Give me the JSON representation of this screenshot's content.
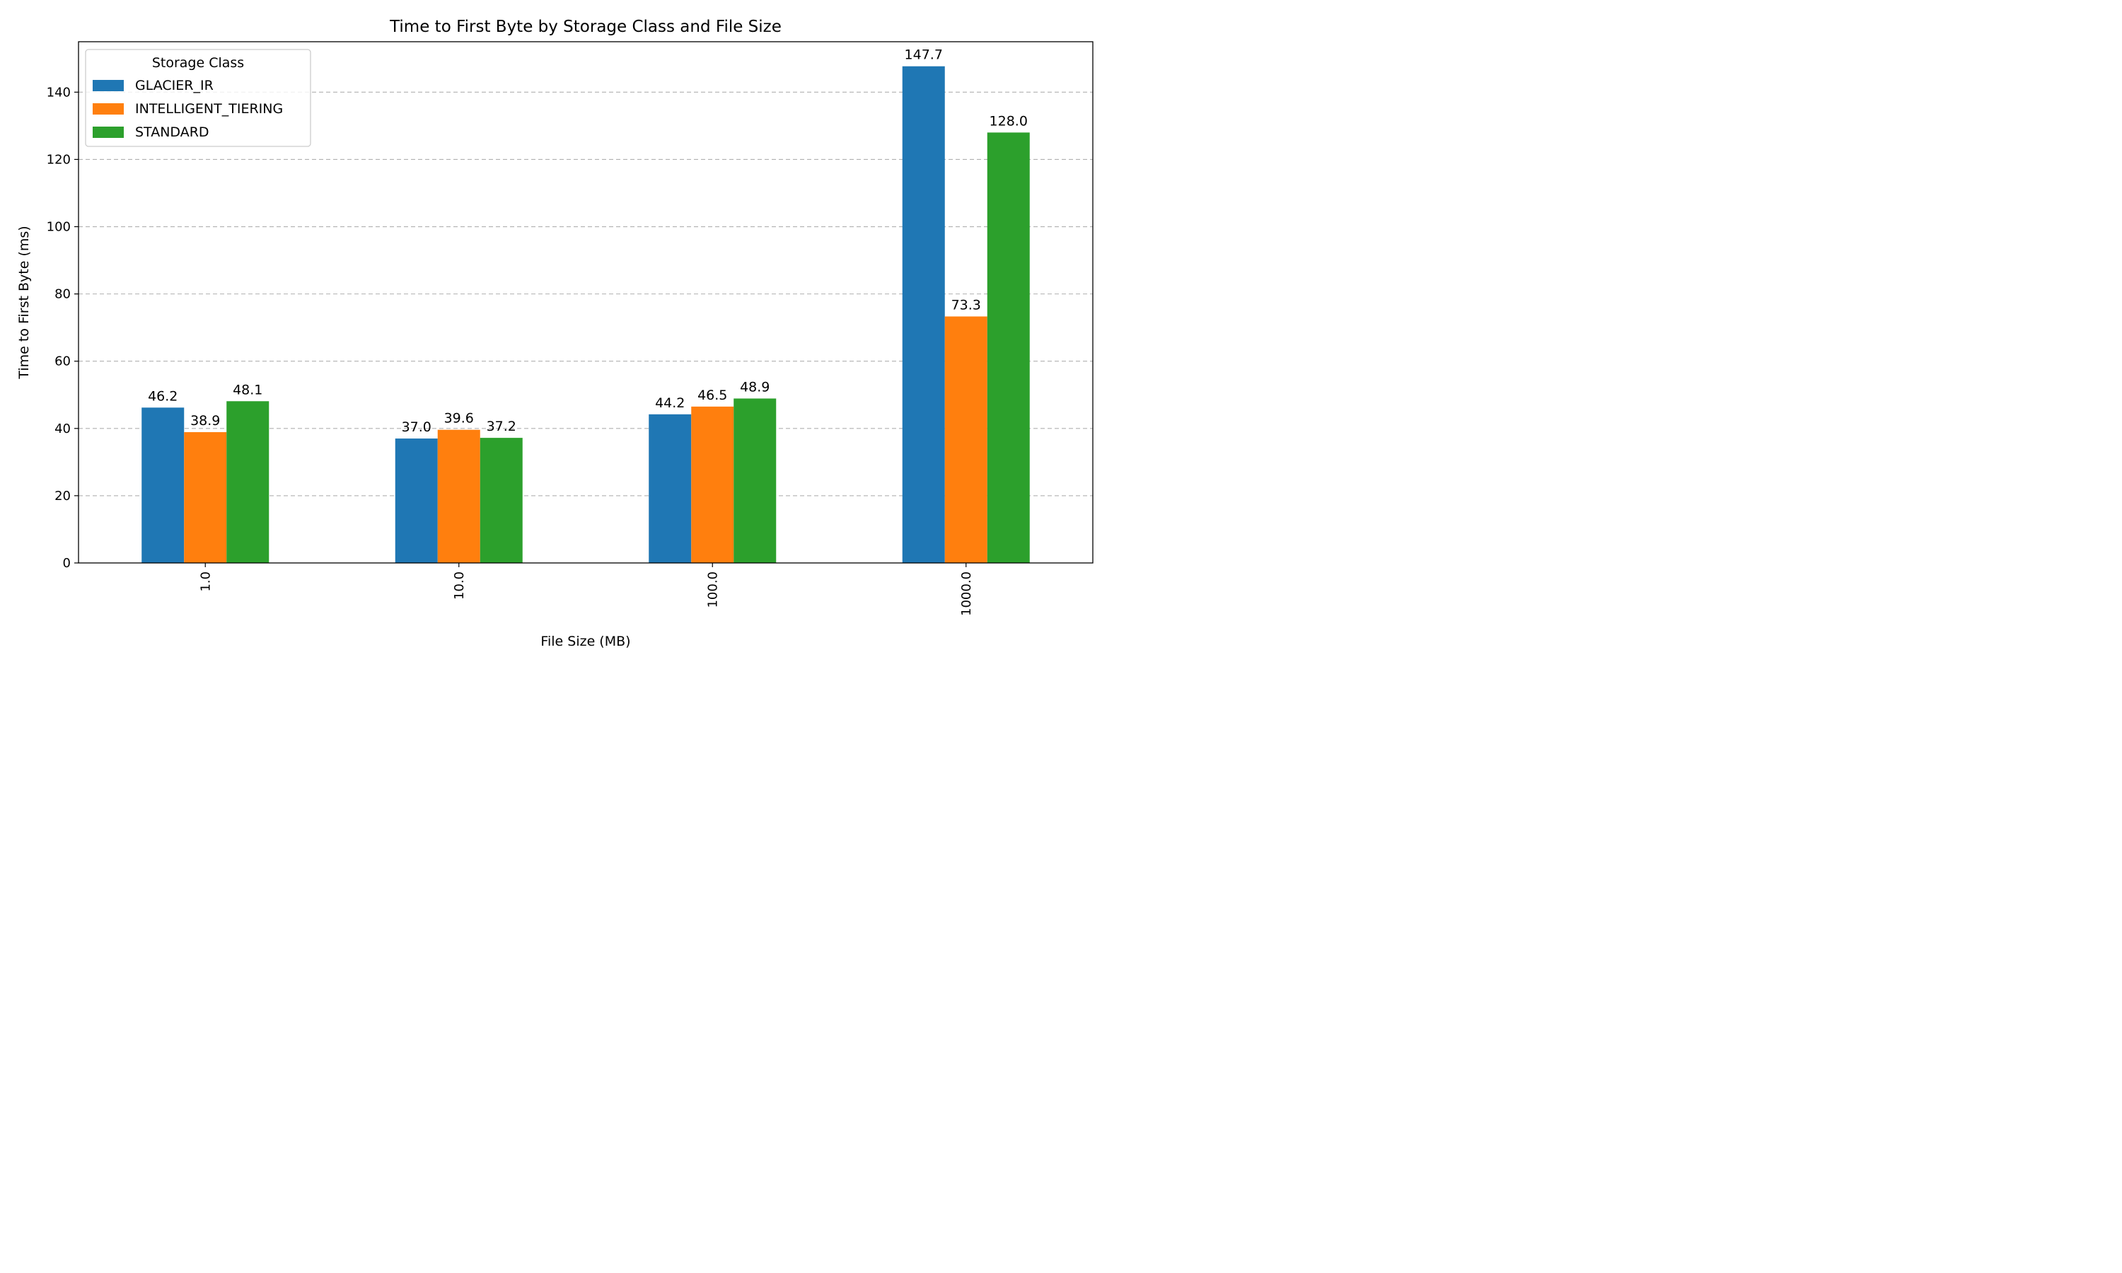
{
  "chart_data": {
    "type": "bar",
    "title": "Time to First Byte by Storage Class and File Size",
    "xlabel": "File Size (MB)",
    "ylabel": "Time to First Byte (ms)",
    "categories": [
      "1.0",
      "10.0",
      "100.0",
      "1000.0"
    ],
    "ylim": [
      0,
      155
    ],
    "yticks": [
      0,
      20,
      40,
      60,
      80,
      100,
      120,
      140
    ],
    "grid": "y-dashed",
    "legend": {
      "title": "Storage Class",
      "placement": "top-left"
    },
    "series": [
      {
        "name": "GLACIER_IR",
        "color": "#1f77b4",
        "values": [
          46.2,
          37.0,
          44.2,
          147.7
        ],
        "labels": [
          "46.2",
          "37.0",
          "44.2",
          "147.7"
        ]
      },
      {
        "name": "INTELLIGENT_TIERING",
        "color": "#ff7f0e",
        "values": [
          38.9,
          39.6,
          46.5,
          73.3
        ],
        "labels": [
          "38.9",
          "39.6",
          "46.5",
          "73.3"
        ]
      },
      {
        "name": "STANDARD",
        "color": "#2ca02c",
        "values": [
          48.1,
          37.2,
          48.9,
          128.0
        ],
        "labels": [
          "48.1",
          "37.2",
          "48.9",
          "128.0"
        ]
      }
    ]
  }
}
